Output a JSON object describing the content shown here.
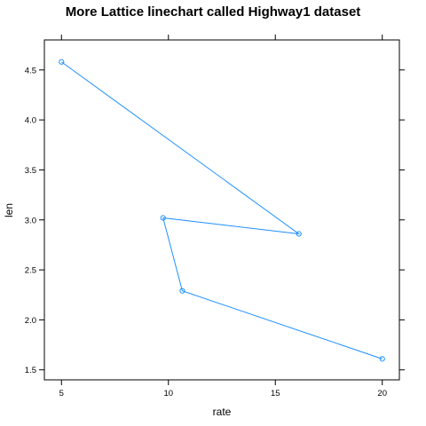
{
  "chart_data": {
    "type": "line",
    "title": "More Lattice linechart called Highway1 dataset",
    "xlabel": "rate",
    "ylabel": "len",
    "xlim": [
      4.2,
      20.8
    ],
    "ylim": [
      1.4,
      4.8
    ],
    "x_ticks": [
      5,
      10,
      15,
      20
    ],
    "y_ticks": [
      1.5,
      2.0,
      2.5,
      3.0,
      3.5,
      4.0,
      4.5
    ],
    "x_tick_labels": [
      "5",
      "10",
      "15",
      "20"
    ],
    "y_tick_labels": [
      "1.5",
      "2.0",
      "2.5",
      "3.0",
      "3.5",
      "4.0",
      "4.5"
    ],
    "series": [
      {
        "x": [
          5.0,
          16.1,
          9.75,
          10.65,
          20.0
        ],
        "y": [
          4.58,
          2.86,
          3.02,
          2.29,
          1.61
        ],
        "color": "#1e90ff"
      }
    ],
    "grid": false,
    "legend": "none"
  }
}
